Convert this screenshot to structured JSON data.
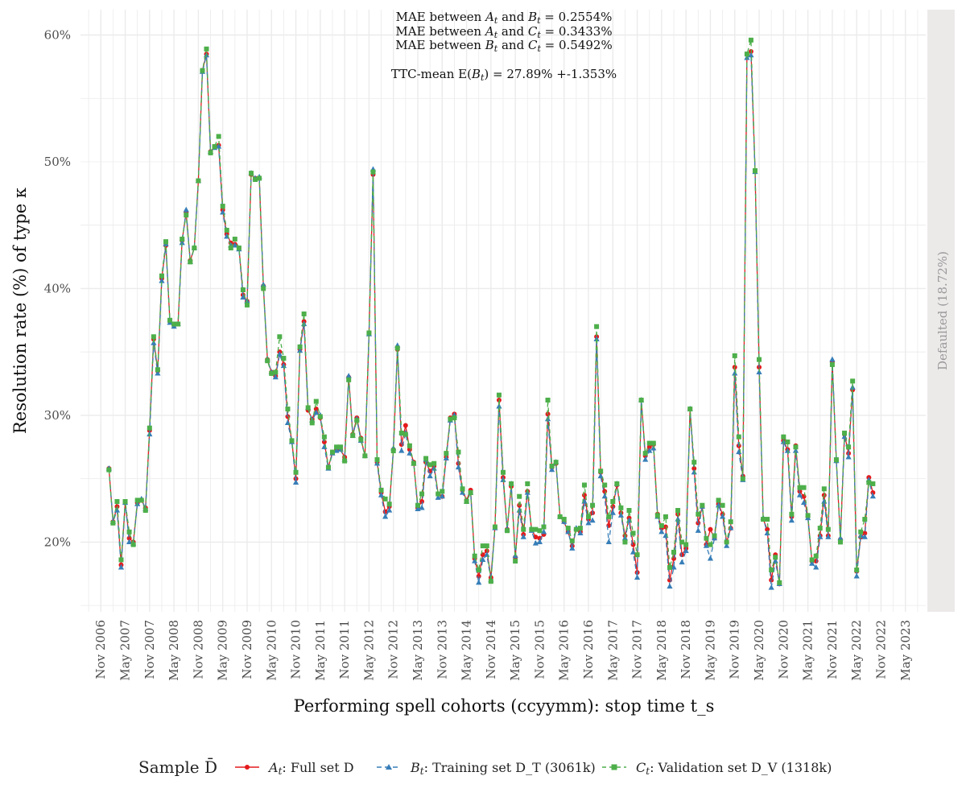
{
  "chart_data": {
    "type": "line",
    "ylabel": "Resolution rate (%) of type κ",
    "xlabel": "Performing spell cohorts (ccyymm): stop time t_s",
    "strip_label": "Defaulted (18.72%)",
    "annotations": [
      "MAE between A_t and B_t = 0.2554%",
      "MAE between A_t and C_t = 0.3433%",
      "MAE between B_t and C_t = 0.5492%",
      "TTC-mean E(B_t) = 27.89% +-1.353%"
    ],
    "y_ticks": [
      "20%",
      "30%",
      "40%",
      "50%",
      "60%"
    ],
    "y_tick_values": [
      0.2,
      0.3,
      0.4,
      0.5,
      0.6
    ],
    "ylim": [
      0.145,
      0.62
    ],
    "x_start": "2007-01",
    "x_end": "2022-12",
    "x_ticks": [
      "Nov 2006",
      "May 2007",
      "Nov 2007",
      "May 2008",
      "Nov 2008",
      "May 2009",
      "Nov 2009",
      "May 2010",
      "Nov 2010",
      "May 2011",
      "Nov 2011",
      "May 2012",
      "Nov 2012",
      "May 2013",
      "Nov 2013",
      "May 2014",
      "Nov 2014",
      "May 2015",
      "Nov 2015",
      "May 2016",
      "Nov 2016",
      "May 2017",
      "Nov 2017",
      "May 2018",
      "Nov 2018",
      "May 2019",
      "Nov 2019",
      "May 2020",
      "Nov 2020",
      "May 2021",
      "Nov 2021",
      "May 2022",
      "Nov 2022",
      "May 2023"
    ],
    "x_tick_dates": [
      "2006-11",
      "2007-05",
      "2007-11",
      "2008-05",
      "2008-11",
      "2009-05",
      "2009-11",
      "2010-05",
      "2010-11",
      "2011-05",
      "2011-11",
      "2012-05",
      "2012-11",
      "2013-05",
      "2013-11",
      "2014-05",
      "2014-11",
      "2015-05",
      "2015-11",
      "2016-05",
      "2016-11",
      "2017-05",
      "2017-11",
      "2018-05",
      "2018-11",
      "2019-05",
      "2019-11",
      "2020-05",
      "2020-11",
      "2021-05",
      "2021-11",
      "2022-05",
      "2022-11",
      "2023-05"
    ],
    "legend_title": "Sample D̄",
    "legend_placement": "bottom",
    "series": [
      {
        "name": "A_t: Full set D",
        "color": "#e41a1c",
        "marker": "circle",
        "linestyle": "solid",
        "values": [
          0.258,
          0.216,
          0.228,
          0.182,
          0.231,
          0.203,
          0.2,
          0.231,
          0.233,
          0.227,
          0.288,
          0.36,
          0.335,
          0.408,
          0.434,
          0.374,
          0.371,
          0.372,
          0.438,
          0.46,
          0.422,
          0.432,
          0.485,
          0.572,
          0.585,
          0.508,
          0.512,
          0.513,
          0.462,
          0.443,
          0.436,
          0.435,
          0.432,
          0.395,
          0.39,
          0.49,
          0.487,
          0.487,
          0.402,
          0.344,
          0.334,
          0.331,
          0.35,
          0.34,
          0.299,
          0.28,
          0.25,
          0.352,
          0.374,
          0.304,
          0.297,
          0.305,
          0.298,
          0.279,
          0.259,
          0.271,
          0.273,
          0.273,
          0.267,
          0.33,
          0.285,
          0.298,
          0.282,
          0.268,
          0.365,
          0.49,
          0.263,
          0.239,
          0.224,
          0.228,
          0.273,
          0.352,
          0.277,
          0.292,
          0.273,
          0.263,
          0.227,
          0.232,
          0.263,
          0.256,
          0.26,
          0.238,
          0.236,
          0.267,
          0.298,
          0.301,
          0.262,
          0.241,
          0.233,
          0.241,
          0.187,
          0.173,
          0.19,
          0.193,
          0.172,
          0.212,
          0.312,
          0.251,
          0.21,
          0.244,
          0.188,
          0.229,
          0.206,
          0.24,
          0.21,
          0.204,
          0.203,
          0.206,
          0.301,
          0.259,
          0.262,
          0.22,
          0.216,
          0.208,
          0.197,
          0.21,
          0.208,
          0.237,
          0.218,
          0.223,
          0.362,
          0.255,
          0.24,
          0.213,
          0.228,
          0.245,
          0.223,
          0.205,
          0.219,
          0.198,
          0.176,
          0.312,
          0.268,
          0.275,
          0.277,
          0.222,
          0.211,
          0.212,
          0.17,
          0.187,
          0.222,
          0.19,
          0.195,
          0.305,
          0.258,
          0.215,
          0.228,
          0.198,
          0.21,
          0.203,
          0.23,
          0.222,
          0.2,
          0.211,
          0.338,
          0.276,
          0.252,
          0.585,
          0.587,
          0.493,
          0.338,
          0.218,
          0.21,
          0.17,
          0.19,
          0.167,
          0.28,
          0.273,
          0.22,
          0.276,
          0.24,
          0.236,
          0.22,
          0.185,
          0.185,
          0.205,
          0.237,
          0.205,
          0.342,
          0.264,
          0.202,
          0.285,
          0.27,
          0.32,
          0.177,
          0.204,
          0.207,
          0.251,
          0.239
        ]
      },
      {
        "name": "B_t: Training set D_T (3061k)",
        "color": "#377eb8",
        "marker": "triangle",
        "linestyle": "dashed",
        "values": [
          0.258,
          0.216,
          0.225,
          0.18,
          0.231,
          0.2,
          0.199,
          0.23,
          0.234,
          0.226,
          0.285,
          0.357,
          0.333,
          0.406,
          0.435,
          0.373,
          0.37,
          0.372,
          0.436,
          0.462,
          0.421,
          0.432,
          0.485,
          0.571,
          0.584,
          0.508,
          0.511,
          0.512,
          0.46,
          0.441,
          0.434,
          0.434,
          0.431,
          0.393,
          0.39,
          0.491,
          0.487,
          0.488,
          0.403,
          0.344,
          0.334,
          0.33,
          0.348,
          0.339,
          0.294,
          0.279,
          0.247,
          0.351,
          0.372,
          0.306,
          0.296,
          0.302,
          0.3,
          0.275,
          0.258,
          0.27,
          0.272,
          0.273,
          0.265,
          0.331,
          0.284,
          0.297,
          0.28,
          0.268,
          0.364,
          0.494,
          0.262,
          0.237,
          0.22,
          0.225,
          0.274,
          0.355,
          0.272,
          0.286,
          0.27,
          0.262,
          0.226,
          0.227,
          0.265,
          0.252,
          0.258,
          0.235,
          0.236,
          0.266,
          0.296,
          0.3,
          0.259,
          0.239,
          0.232,
          0.239,
          0.185,
          0.168,
          0.186,
          0.19,
          0.17,
          0.211,
          0.307,
          0.249,
          0.21,
          0.246,
          0.189,
          0.225,
          0.204,
          0.239,
          0.209,
          0.199,
          0.2,
          0.208,
          0.297,
          0.257,
          0.263,
          0.22,
          0.216,
          0.208,
          0.195,
          0.211,
          0.207,
          0.232,
          0.215,
          0.217,
          0.36,
          0.252,
          0.236,
          0.2,
          0.223,
          0.246,
          0.221,
          0.203,
          0.217,
          0.192,
          0.172,
          0.312,
          0.265,
          0.272,
          0.274,
          0.22,
          0.208,
          0.205,
          0.165,
          0.18,
          0.218,
          0.184,
          0.193,
          0.305,
          0.255,
          0.209,
          0.228,
          0.197,
          0.187,
          0.203,
          0.229,
          0.22,
          0.197,
          0.211,
          0.333,
          0.271,
          0.249,
          0.582,
          0.584,
          0.492,
          0.334,
          0.219,
          0.207,
          0.164,
          0.185,
          0.167,
          0.279,
          0.272,
          0.217,
          0.272,
          0.237,
          0.231,
          0.219,
          0.183,
          0.18,
          0.204,
          0.232,
          0.204,
          0.344,
          0.264,
          0.203,
          0.283,
          0.267,
          0.322,
          0.173,
          0.205,
          0.204,
          0.249,
          0.236
        ]
      },
      {
        "name": "C_t: Validation set D_V (1318k)",
        "color": "#4daf4a",
        "marker": "square",
        "linestyle": "dashed",
        "values": [
          0.257,
          0.215,
          0.232,
          0.186,
          0.232,
          0.208,
          0.198,
          0.233,
          0.233,
          0.225,
          0.29,
          0.362,
          0.336,
          0.41,
          0.437,
          0.375,
          0.372,
          0.372,
          0.439,
          0.458,
          0.421,
          0.432,
          0.485,
          0.572,
          0.589,
          0.507,
          0.512,
          0.52,
          0.465,
          0.446,
          0.432,
          0.439,
          0.432,
          0.399,
          0.387,
          0.491,
          0.486,
          0.487,
          0.4,
          0.343,
          0.333,
          0.334,
          0.362,
          0.345,
          0.305,
          0.28,
          0.255,
          0.354,
          0.38,
          0.306,
          0.294,
          0.311,
          0.299,
          0.283,
          0.259,
          0.271,
          0.275,
          0.275,
          0.264,
          0.328,
          0.284,
          0.296,
          0.281,
          0.268,
          0.365,
          0.492,
          0.265,
          0.241,
          0.234,
          0.23,
          0.272,
          0.353,
          0.286,
          0.285,
          0.276,
          0.262,
          0.229,
          0.238,
          0.266,
          0.261,
          0.262,
          0.238,
          0.24,
          0.27,
          0.297,
          0.298,
          0.271,
          0.242,
          0.232,
          0.239,
          0.189,
          0.178,
          0.197,
          0.197,
          0.169,
          0.212,
          0.316,
          0.255,
          0.209,
          0.246,
          0.185,
          0.236,
          0.21,
          0.246,
          0.21,
          0.21,
          0.209,
          0.212,
          0.312,
          0.26,
          0.263,
          0.22,
          0.218,
          0.211,
          0.201,
          0.21,
          0.211,
          0.245,
          0.22,
          0.229,
          0.37,
          0.256,
          0.245,
          0.22,
          0.232,
          0.246,
          0.227,
          0.2,
          0.225,
          0.207,
          0.19,
          0.312,
          0.27,
          0.278,
          0.278,
          0.221,
          0.213,
          0.22,
          0.18,
          0.192,
          0.225,
          0.2,
          0.198,
          0.305,
          0.263,
          0.222,
          0.229,
          0.203,
          0.198,
          0.205,
          0.233,
          0.229,
          0.2,
          0.216,
          0.347,
          0.283,
          0.25,
          0.585,
          0.596,
          0.493,
          0.344,
          0.218,
          0.218,
          0.178,
          0.188,
          0.168,
          0.283,
          0.279,
          0.222,
          0.275,
          0.243,
          0.243,
          0.221,
          0.186,
          0.189,
          0.211,
          0.242,
          0.21,
          0.34,
          0.265,
          0.2,
          0.286,
          0.275,
          0.327,
          0.178,
          0.208,
          0.218,
          0.247,
          0.246
        ]
      }
    ]
  }
}
